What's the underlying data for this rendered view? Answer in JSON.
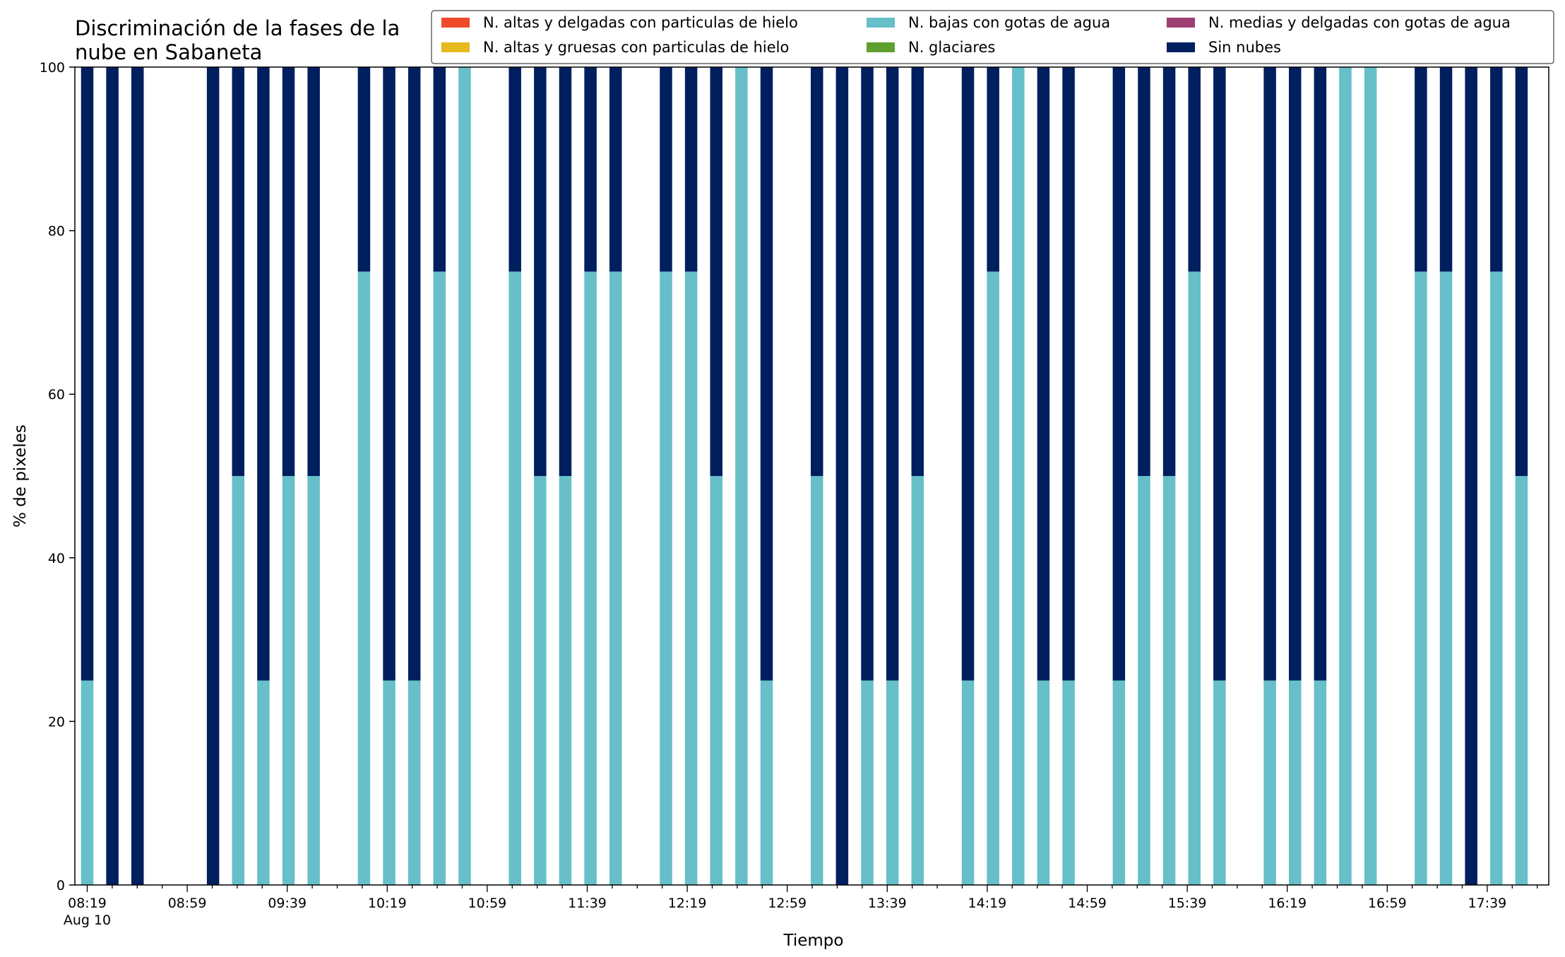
{
  "chart_data": {
    "type": "bar",
    "stacked": true,
    "title_line1": "Discriminación de la fases de la",
    "title_line2": "nube en Sabaneta",
    "xlabel": "Tiempo",
    "ylabel": "% de pixeles",
    "ylim": [
      0,
      100
    ],
    "yticks": [
      "0",
      "20",
      "40",
      "60",
      "80",
      "100"
    ],
    "date_label": "Aug 10",
    "xtick_labels": [
      "08:19",
      "08:59",
      "09:39",
      "10:19",
      "10:59",
      "11:39",
      "12:19",
      "12:59",
      "13:39",
      "14:19",
      "14:59",
      "15:39",
      "16:19",
      "16:59",
      "17:39"
    ],
    "grid": false,
    "legend_position": "top-right",
    "legend": [
      {
        "name": "N. altas y delgadas con particulas de hielo",
        "color": "#ee4b2b"
      },
      {
        "name": "N. altas y gruesas con particulas de hielo",
        "color": "#e6b91e"
      },
      {
        "name": "N. bajas con gotas de agua",
        "color": "#66bfc9"
      },
      {
        "name": "N. glaciares",
        "color": "#5f9f2f"
      },
      {
        "name": "N. medias y delgadas con gotas de agua",
        "color": "#9e3f74"
      },
      {
        "name": "Sin nubes",
        "color": "#001f5f"
      }
    ],
    "series": [
      {
        "name": "N. bajas con gotas de agua",
        "color": "#66bfc9",
        "values": [
          25,
          0,
          0,
          null,
          null,
          0,
          50,
          25,
          50,
          50,
          null,
          75,
          25,
          25,
          75,
          100,
          null,
          75,
          50,
          50,
          75,
          75,
          null,
          75,
          75,
          50,
          100,
          25,
          null,
          50,
          0,
          25,
          25,
          50,
          null,
          25,
          75,
          100,
          25,
          25,
          null,
          25,
          50,
          50,
          75,
          25,
          null,
          25,
          25,
          25,
          100,
          100,
          null,
          75,
          75,
          0,
          75,
          50
        ]
      },
      {
        "name": "Sin nubes",
        "color": "#001f5f",
        "values": [
          75,
          100,
          100,
          null,
          null,
          100,
          50,
          75,
          50,
          50,
          null,
          25,
          75,
          75,
          25,
          0,
          null,
          25,
          50,
          50,
          25,
          25,
          null,
          25,
          25,
          50,
          0,
          75,
          null,
          50,
          100,
          75,
          75,
          50,
          null,
          75,
          25,
          0,
          75,
          75,
          null,
          75,
          50,
          50,
          25,
          75,
          null,
          75,
          75,
          75,
          0,
          0,
          null,
          25,
          25,
          100,
          25,
          50
        ]
      }
    ]
  }
}
